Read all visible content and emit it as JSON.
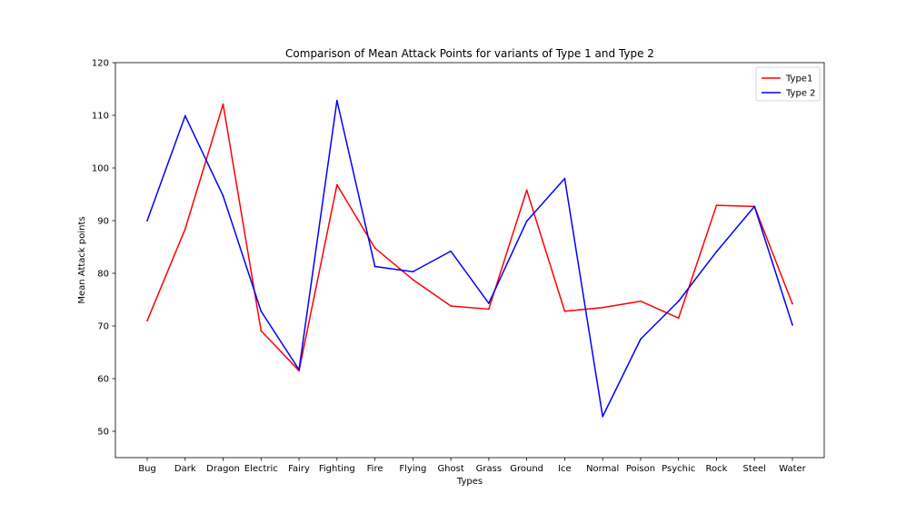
{
  "chart_data": {
    "type": "line",
    "title": "Comparison of Mean Attack Points for variants of Type 1 and Type 2",
    "xlabel": "Types",
    "ylabel": "Mean Attack points",
    "ylim": [
      45,
      120
    ],
    "yticks": [
      50,
      60,
      70,
      80,
      90,
      100,
      110,
      120
    ],
    "categories": [
      "Bug",
      "Dark",
      "Dragon",
      "Electric",
      "Fairy",
      "Fighting",
      "Fire",
      "Flying",
      "Ghost",
      "Grass",
      "Ground",
      "Ice",
      "Normal",
      "Poison",
      "Psychic",
      "Rock",
      "Steel",
      "Water"
    ],
    "series": [
      {
        "name": "Type1",
        "color": "#ff0000",
        "values": [
          71.0,
          88.4,
          112.1,
          69.1,
          61.5,
          96.8,
          84.8,
          78.8,
          73.8,
          73.2,
          95.8,
          72.8,
          73.5,
          74.7,
          71.5,
          92.9,
          92.7,
          74.2
        ]
      },
      {
        "name": "Type 2",
        "color": "#0000ff",
        "values": [
          90.0,
          109.9,
          94.7,
          72.8,
          61.7,
          112.8,
          81.3,
          80.3,
          84.2,
          74.3,
          89.9,
          98.0,
          52.8,
          67.5,
          74.7,
          84.1,
          92.7,
          70.2
        ]
      }
    ],
    "legend": "top-right",
    "grid": false
  }
}
